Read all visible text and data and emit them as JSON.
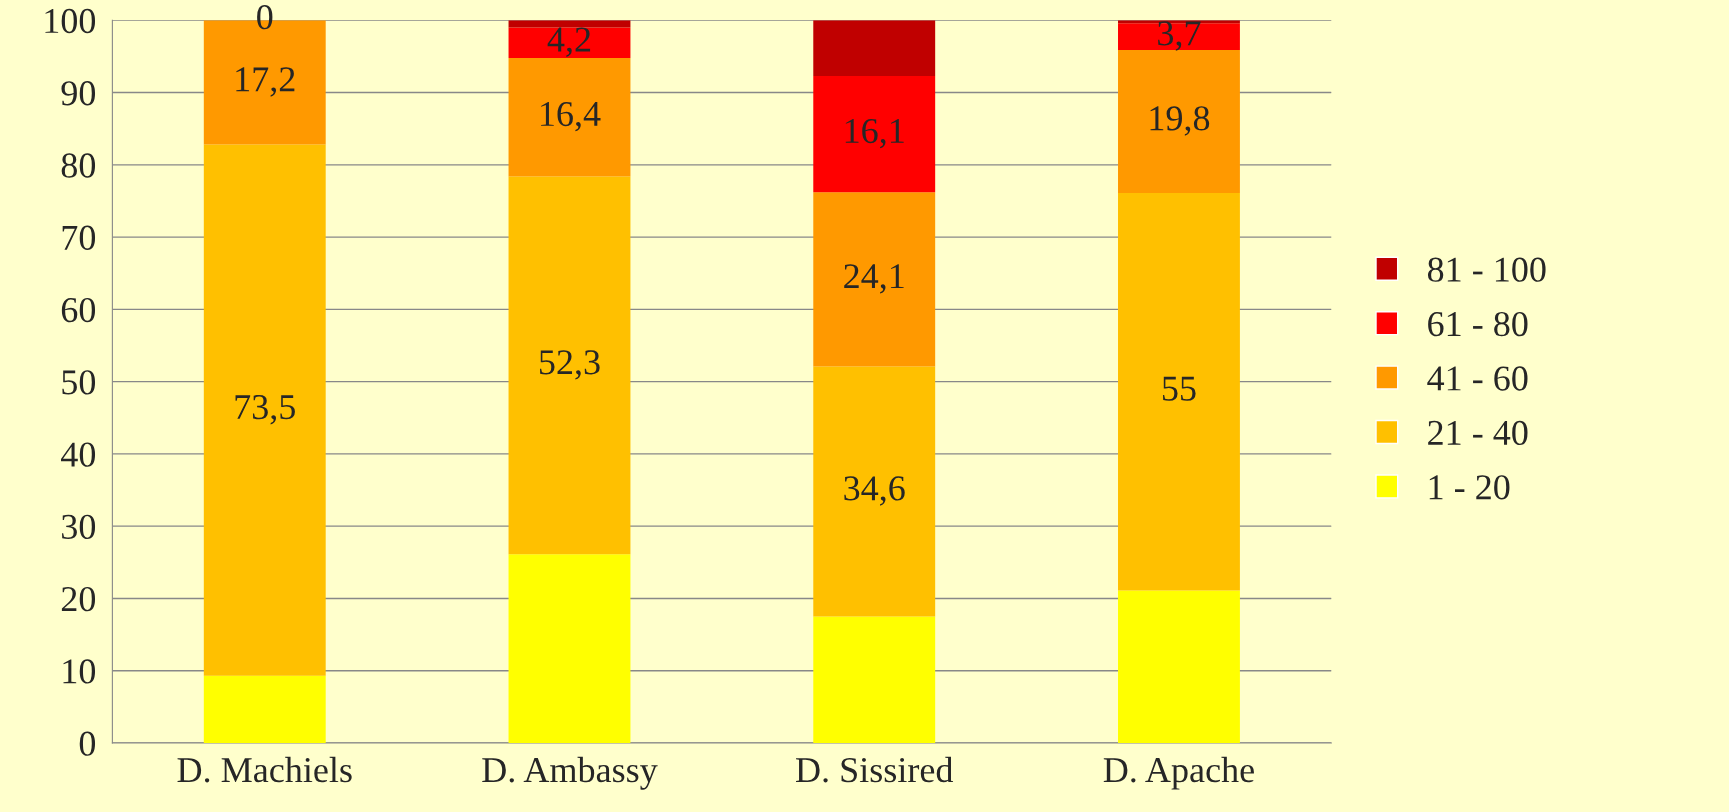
{
  "chart_data": {
    "type": "bar",
    "stacked": true,
    "categories": [
      "D. Machiels",
      "D. Ambassy",
      "D. Sissired",
      "D. Apache"
    ],
    "series": [
      {
        "name": "1 - 20",
        "color": "#ffff00",
        "values": [
          9.3,
          26.1,
          17.5,
          21.1
        ],
        "value_labels": [
          null,
          null,
          null,
          null
        ]
      },
      {
        "name": "21 - 40",
        "color": "#ffc000",
        "values": [
          73.5,
          52.3,
          34.6,
          55
        ],
        "value_labels": [
          "73,5",
          "52,3",
          "34,6",
          "55"
        ]
      },
      {
        "name": "41 - 60",
        "color": "#ff9900",
        "values": [
          17.2,
          16.4,
          24.1,
          19.8
        ],
        "value_labels": [
          "17,2",
          "16,4",
          "24,1",
          "19,8"
        ]
      },
      {
        "name": "61 - 80",
        "color": "#ff0000",
        "values": [
          0,
          4.2,
          16.1,
          3.7
        ],
        "value_labels": [
          "0",
          "4,2",
          "16,1",
          "3,7"
        ]
      },
      {
        "name": "81 - 100",
        "color": "#c00000",
        "values": [
          0,
          1.0,
          7.7,
          0.4
        ],
        "value_labels": [
          null,
          null,
          null,
          null
        ]
      }
    ],
    "ylim": [
      0,
      100
    ],
    "yticks": [
      0,
      10,
      20,
      30,
      40,
      50,
      60,
      70,
      80,
      90,
      100
    ],
    "grid": "y",
    "legend": "right"
  }
}
